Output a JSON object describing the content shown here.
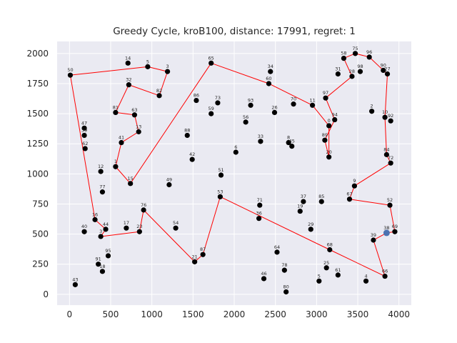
{
  "chart_data": {
    "type": "scatter",
    "title": "Greedy Cycle, kroB100, distance: 17991, regret: 1",
    "xlabel": "",
    "ylabel": "",
    "xlim": [
      -150,
      4150
    ],
    "ylim": [
      -90,
      2100
    ],
    "xticks": [
      0,
      500,
      1000,
      1500,
      2000,
      2500,
      3000,
      3500,
      4000
    ],
    "yticks": [
      0,
      250,
      500,
      750,
      1000,
      1250,
      1500,
      1750,
      2000
    ],
    "grid": true,
    "background": "#eaeaf2",
    "edge_color": "#ff0000",
    "point_color": "#000000",
    "start_color": "#4c72b0",
    "start_node": "38",
    "points": [
      {
        "label": "50",
        "x": 10,
        "y": 1820
      },
      {
        "label": "14",
        "x": 710,
        "y": 1920
      },
      {
        "label": "5",
        "x": 950,
        "y": 1890
      },
      {
        "label": "3",
        "x": 1190,
        "y": 1850
      },
      {
        "label": "32",
        "x": 720,
        "y": 1740
      },
      {
        "label": "82",
        "x": 1090,
        "y": 1650
      },
      {
        "label": "65",
        "x": 1720,
        "y": 1920
      },
      {
        "label": "34",
        "x": 2440,
        "y": 1850
      },
      {
        "label": "60",
        "x": 2420,
        "y": 1750
      },
      {
        "label": "58",
        "x": 3330,
        "y": 1960
      },
      {
        "label": "75",
        "x": 3470,
        "y": 2000
      },
      {
        "label": "96",
        "x": 3640,
        "y": 1970
      },
      {
        "label": "31",
        "x": 3260,
        "y": 1830
      },
      {
        "label": "28",
        "x": 3430,
        "y": 1810
      },
      {
        "label": "98",
        "x": 3530,
        "y": 1850
      },
      {
        "label": "90",
        "x": 3810,
        "y": 1860
      },
      {
        "label": "27",
        "x": 3860,
        "y": 1830
      },
      {
        "label": "86",
        "x": 1540,
        "y": 1610
      },
      {
        "label": "73",
        "x": 1800,
        "y": 1590
      },
      {
        "label": "59",
        "x": 1720,
        "y": 1500
      },
      {
        "label": "93",
        "x": 2200,
        "y": 1570
      },
      {
        "label": "26",
        "x": 2490,
        "y": 1510
      },
      {
        "label": "70",
        "x": 2720,
        "y": 1580
      },
      {
        "label": "11",
        "x": 2950,
        "y": 1570
      },
      {
        "label": "97",
        "x": 3110,
        "y": 1630
      },
      {
        "label": "2",
        "x": 3670,
        "y": 1520
      },
      {
        "label": "10",
        "x": 3830,
        "y": 1470
      },
      {
        "label": "92",
        "x": 3900,
        "y": 1440
      },
      {
        "label": "81",
        "x": 560,
        "y": 1510
      },
      {
        "label": "63",
        "x": 790,
        "y": 1490
      },
      {
        "label": "13",
        "x": 840,
        "y": 1350
      },
      {
        "label": "41",
        "x": 630,
        "y": 1260
      },
      {
        "label": "56",
        "x": 2140,
        "y": 1430
      },
      {
        "label": "94",
        "x": 3220,
        "y": 1450
      },
      {
        "label": "0",
        "x": 3150,
        "y": 1400
      },
      {
        "label": "39",
        "x": 180,
        "y": 1320
      },
      {
        "label": "47",
        "x": 180,
        "y": 1380
      },
      {
        "label": "62",
        "x": 190,
        "y": 1210
      },
      {
        "label": "88",
        "x": 1430,
        "y": 1320
      },
      {
        "label": "33",
        "x": 2320,
        "y": 1270
      },
      {
        "label": "8",
        "x": 2660,
        "y": 1260
      },
      {
        "label": "45",
        "x": 2700,
        "y": 1230
      },
      {
        "label": "89",
        "x": 3100,
        "y": 1280
      },
      {
        "label": "84",
        "x": 3850,
        "y": 1160
      },
      {
        "label": "72",
        "x": 3900,
        "y": 1090
      },
      {
        "label": "20",
        "x": 3150,
        "y": 1140
      },
      {
        "label": "6",
        "x": 2020,
        "y": 1180
      },
      {
        "label": "42",
        "x": 1490,
        "y": 1120
      },
      {
        "label": "12",
        "x": 380,
        "y": 1020
      },
      {
        "label": "1",
        "x": 560,
        "y": 1060
      },
      {
        "label": "15",
        "x": 740,
        "y": 920
      },
      {
        "label": "49",
        "x": 1210,
        "y": 910
      },
      {
        "label": "51",
        "x": 1840,
        "y": 990
      },
      {
        "label": "9",
        "x": 3460,
        "y": 900
      },
      {
        "label": "77",
        "x": 400,
        "y": 850
      },
      {
        "label": "53",
        "x": 1830,
        "y": 810
      },
      {
        "label": "71",
        "x": 2310,
        "y": 740
      },
      {
        "label": "37",
        "x": 2840,
        "y": 770
      },
      {
        "label": "85",
        "x": 3060,
        "y": 770
      },
      {
        "label": "67",
        "x": 3400,
        "y": 790
      },
      {
        "label": "52",
        "x": 3890,
        "y": 740
      },
      {
        "label": "76",
        "x": 900,
        "y": 700
      },
      {
        "label": "19",
        "x": 2800,
        "y": 690
      },
      {
        "label": "36",
        "x": 2300,
        "y": 630
      },
      {
        "label": "16",
        "x": 310,
        "y": 620
      },
      {
        "label": "44",
        "x": 440,
        "y": 540
      },
      {
        "label": "40",
        "x": 180,
        "y": 520
      },
      {
        "label": "17",
        "x": 690,
        "y": 550
      },
      {
        "label": "23",
        "x": 850,
        "y": 520
      },
      {
        "label": "3",
        "x": 380,
        "y": 480
      },
      {
        "label": "54",
        "x": 1290,
        "y": 550
      },
      {
        "label": "29",
        "x": 2930,
        "y": 540
      },
      {
        "label": "38",
        "x": 3850,
        "y": 510
      },
      {
        "label": "69",
        "x": 3950,
        "y": 520
      },
      {
        "label": "39",
        "x": 3690,
        "y": 450
      },
      {
        "label": "95",
        "x": 470,
        "y": 320
      },
      {
        "label": "87",
        "x": 1620,
        "y": 330
      },
      {
        "label": "21",
        "x": 1520,
        "y": 270
      },
      {
        "label": "64",
        "x": 2520,
        "y": 350
      },
      {
        "label": "68",
        "x": 3160,
        "y": 370
      },
      {
        "label": "91",
        "x": 350,
        "y": 250
      },
      {
        "label": "18",
        "x": 400,
        "y": 190
      },
      {
        "label": "25",
        "x": 3120,
        "y": 220
      },
      {
        "label": "78",
        "x": 2610,
        "y": 200
      },
      {
        "label": "46",
        "x": 2360,
        "y": 130
      },
      {
        "label": "5",
        "x": 3030,
        "y": 110
      },
      {
        "label": "80",
        "x": 2630,
        "y": 20
      },
      {
        "label": "66",
        "x": 3830,
        "y": 150
      },
      {
        "label": "61",
        "x": 3260,
        "y": 160
      },
      {
        "label": "4",
        "x": 3600,
        "y": 110
      },
      {
        "label": "43",
        "x": 70,
        "y": 80
      }
    ],
    "cycle": [
      [
        3950,
        520
      ],
      [
        3850,
        510
      ],
      [
        3690,
        450
      ],
      [
        3830,
        150
      ],
      [
        3160,
        370
      ],
      [
        1830,
        810
      ],
      [
        1620,
        330
      ],
      [
        1520,
        270
      ],
      [
        900,
        700
      ],
      [
        850,
        520
      ],
      [
        380,
        480
      ],
      [
        440,
        540
      ],
      [
        310,
        620
      ],
      [
        10,
        1820
      ],
      [
        950,
        1890
      ],
      [
        1190,
        1850
      ],
      [
        1090,
        1650
      ],
      [
        720,
        1740
      ],
      [
        560,
        1510
      ],
      [
        790,
        1490
      ],
      [
        840,
        1350
      ],
      [
        630,
        1260
      ],
      [
        560,
        1060
      ],
      [
        740,
        920
      ],
      [
        1720,
        1920
      ],
      [
        2420,
        1750
      ],
      [
        2950,
        1570
      ],
      [
        3150,
        1400
      ],
      [
        3150,
        1140
      ],
      [
        3100,
        1280
      ],
      [
        3220,
        1450
      ],
      [
        3110,
        1630
      ],
      [
        3430,
        1810
      ],
      [
        3330,
        1960
      ],
      [
        3470,
        2000
      ],
      [
        3640,
        1970
      ],
      [
        3810,
        1860
      ],
      [
        3860,
        1830
      ],
      [
        3830,
        1470
      ],
      [
        3850,
        1160
      ],
      [
        3900,
        1090
      ],
      [
        3460,
        900
      ],
      [
        3400,
        790
      ],
      [
        3890,
        740
      ],
      [
        3950,
        520
      ]
    ]
  }
}
